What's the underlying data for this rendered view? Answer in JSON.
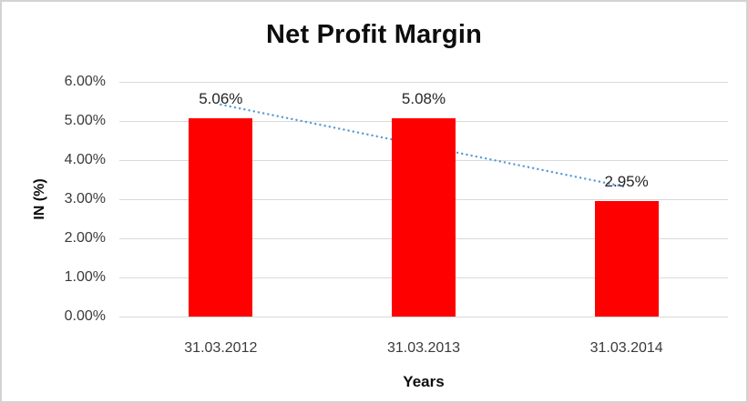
{
  "chart_data": {
    "type": "bar",
    "title": "Net Profit Margin",
    "xlabel": "Years",
    "ylabel": "IN (%)",
    "categories": [
      "31.03.2012",
      "31.03.2013",
      "31.03.2014"
    ],
    "series": [
      {
        "name": "Net Profit Margin",
        "values": [
          5.06,
          5.08,
          2.95
        ],
        "data_labels": [
          "5.06%",
          "5.08%",
          "2.95%"
        ],
        "color": "#ff0000"
      }
    ],
    "trendline": {
      "type": "linear",
      "style": "dotted",
      "color": "#5b9bd5",
      "y_start": 5.42,
      "y_end": 3.31
    },
    "ylim": [
      0,
      6
    ],
    "yticks": [
      "0.00%",
      "1.00%",
      "2.00%",
      "3.00%",
      "4.00%",
      "5.00%",
      "6.00%"
    ],
    "grid": true,
    "legend": "none"
  },
  "colors": {
    "bar": "#ff0000",
    "trendline": "#5b9bd5",
    "gridline": "#d9d9d9",
    "tick_text": "#3a3a3a",
    "title_text": "#0d0d0d",
    "border": "#d3d3d3",
    "background": "#ffffff"
  }
}
